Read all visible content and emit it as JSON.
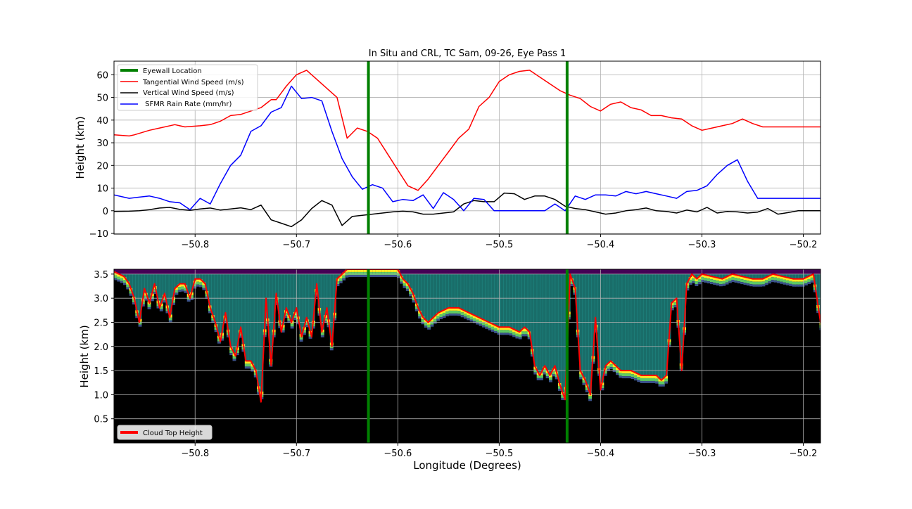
{
  "chart_data": [
    {
      "type": "line",
      "title": "In Situ and CRL, TC Sam, 09-26, Eye Pass 1",
      "xlabel": "",
      "ylabel": "Height (km)",
      "xlim": [
        -50.88,
        -50.183
      ],
      "ylim": [
        -10.3,
        66
      ],
      "x_ticks": [
        -50.8,
        -50.7,
        -50.6,
        -50.5,
        -50.4,
        -50.3,
        -50.2
      ],
      "x_tick_labels": [
        "−50.8",
        "−50.7",
        "−50.6",
        "−50.5",
        "−50.4",
        "−50.3",
        "−50.2"
      ],
      "y_ticks": [
        -10,
        0,
        10,
        20,
        30,
        40,
        50,
        60
      ],
      "y_tick_labels": [
        "−10",
        "0",
        "10",
        "20",
        "30",
        "40",
        "50",
        "60"
      ],
      "grid": true,
      "legend_position": "top-left",
      "eyewall_longitudes": [
        -50.629,
        -50.433
      ],
      "series": [
        {
          "name": "Eyewall Location",
          "color": "#008000",
          "kind": "vline"
        },
        {
          "name": "Tangential Wind Speed (m/s)",
          "color": "#ff0000",
          "x": [
            -50.88,
            -50.865,
            -50.86,
            -50.845,
            -50.835,
            -50.82,
            -50.81,
            -50.795,
            -50.785,
            -50.775,
            -50.765,
            -50.755,
            -50.745,
            -50.735,
            -50.725,
            -50.72,
            -50.71,
            -50.7,
            -50.69,
            -50.68,
            -50.67,
            -50.66,
            -50.65,
            -50.64,
            -50.63,
            -50.62,
            -50.61,
            -50.6,
            -50.59,
            -50.58,
            -50.57,
            -50.56,
            -50.55,
            -50.54,
            -50.53,
            -50.52,
            -50.51,
            -50.5,
            -50.49,
            -50.48,
            -50.47,
            -50.46,
            -50.45,
            -50.44,
            -50.43,
            -50.42,
            -50.41,
            -50.4,
            -50.39,
            -50.38,
            -50.37,
            -50.36,
            -50.35,
            -50.34,
            -50.33,
            -50.32,
            -50.31,
            -50.3,
            -50.29,
            -50.28,
            -50.27,
            -50.26,
            -50.25,
            -50.24,
            -50.23,
            -50.22,
            -50.21,
            -50.2,
            -50.183
          ],
          "y": [
            33.5,
            33,
            33.5,
            35.5,
            36.5,
            38,
            37,
            37.5,
            38,
            39.5,
            42,
            42.5,
            44,
            45.5,
            49,
            49,
            55,
            60,
            62,
            58,
            54,
            50,
            32,
            36.5,
            35,
            32,
            25,
            18,
            11,
            9,
            14,
            20,
            26,
            32,
            36,
            46,
            50,
            57,
            60,
            61.5,
            62,
            59,
            56,
            53,
            51,
            49.5,
            46,
            44,
            47,
            48,
            45.5,
            44.5,
            42,
            42,
            41,
            40.5,
            37.5,
            35.5,
            36.5,
            37.5,
            38.5,
            40.5,
            38.5,
            37,
            37,
            37,
            37,
            37,
            37
          ]
        },
        {
          "name": "Vertical Wind Speed (m/s)",
          "color": "#000000",
          "x": [
            -50.88,
            -50.865,
            -50.855,
            -50.845,
            -50.835,
            -50.825,
            -50.815,
            -50.805,
            -50.795,
            -50.785,
            -50.775,
            -50.765,
            -50.755,
            -50.745,
            -50.735,
            -50.725,
            -50.715,
            -50.705,
            -50.695,
            -50.685,
            -50.675,
            -50.665,
            -50.655,
            -50.645,
            -50.635,
            -50.625,
            -50.615,
            -50.605,
            -50.595,
            -50.585,
            -50.575,
            -50.565,
            -50.555,
            -50.545,
            -50.535,
            -50.525,
            -50.515,
            -50.505,
            -50.495,
            -50.485,
            -50.475,
            -50.465,
            -50.455,
            -50.445,
            -50.435,
            -50.425,
            -50.415,
            -50.405,
            -50.395,
            -50.385,
            -50.375,
            -50.365,
            -50.355,
            -50.345,
            -50.335,
            -50.325,
            -50.315,
            -50.305,
            -50.295,
            -50.285,
            -50.275,
            -50.265,
            -50.255,
            -50.245,
            -50.235,
            -50.225,
            -50.215,
            -50.205,
            -50.195,
            -50.183
          ],
          "y": [
            -0.3,
            -0.2,
            0,
            0.5,
            1.2,
            1.5,
            0.6,
            0.2,
            0.8,
            1.2,
            0.3,
            0.8,
            1.3,
            0.5,
            2.5,
            -4,
            -5.5,
            -7,
            -4,
            1,
            4.5,
            2.5,
            -6.5,
            -2.5,
            -2,
            -1.5,
            -1,
            -0.5,
            -0.2,
            -0.5,
            -1.5,
            -1.5,
            -1,
            -0.5,
            3,
            4.5,
            4,
            4,
            7.8,
            7.5,
            5,
            6.5,
            6.5,
            5,
            2,
            1,
            0.5,
            -0.5,
            -1.5,
            -1,
            0,
            0.5,
            1.2,
            0,
            -0.3,
            -1,
            0.3,
            -0.5,
            1.5,
            -1,
            -0.3,
            -0.5,
            -1,
            -0.6,
            1,
            -1.5,
            -0.8,
            0,
            0,
            0
          ]
        },
        {
          "name": " SFMR Rain Rate (mm/hr)",
          "color": "#0000ff",
          "x": [
            -50.88,
            -50.865,
            -50.855,
            -50.845,
            -50.835,
            -50.825,
            -50.815,
            -50.805,
            -50.795,
            -50.785,
            -50.775,
            -50.765,
            -50.755,
            -50.745,
            -50.735,
            -50.725,
            -50.715,
            -50.705,
            -50.695,
            -50.685,
            -50.675,
            -50.665,
            -50.655,
            -50.645,
            -50.635,
            -50.625,
            -50.615,
            -50.605,
            -50.595,
            -50.585,
            -50.575,
            -50.565,
            -50.555,
            -50.545,
            -50.535,
            -50.525,
            -50.515,
            -50.505,
            -50.495,
            -50.485,
            -50.475,
            -50.465,
            -50.455,
            -50.445,
            -50.435,
            -50.425,
            -50.415,
            -50.405,
            -50.395,
            -50.385,
            -50.375,
            -50.365,
            -50.355,
            -50.345,
            -50.335,
            -50.325,
            -50.315,
            -50.305,
            -50.295,
            -50.285,
            -50.275,
            -50.265,
            -50.255,
            -50.245,
            -50.235,
            -50.225,
            -50.215,
            -50.205,
            -50.195,
            -50.183
          ],
          "y": [
            7,
            5.5,
            6,
            6.5,
            5.5,
            4,
            3.5,
            0.5,
            5.5,
            3,
            12,
            20,
            24.5,
            35,
            37.5,
            43.5,
            45.5,
            55,
            49.5,
            50,
            48.5,
            35,
            23,
            15,
            9.5,
            11.5,
            10,
            4,
            5,
            4.5,
            7,
            1,
            8,
            5,
            0,
            5.5,
            5,
            0,
            0,
            0,
            0,
            0,
            0,
            3,
            0,
            6.5,
            5,
            7,
            7,
            6.5,
            8.5,
            7.5,
            8.5,
            7.5,
            6.5,
            5.5,
            8.5,
            9,
            11,
            16,
            20,
            22.5,
            13,
            5.5,
            5.5,
            5.5,
            5.5,
            5.5,
            5.5,
            5.5
          ]
        }
      ]
    },
    {
      "type": "heatmap",
      "title": "",
      "xlabel": "Longitude (Degrees)",
      "ylabel": "Height (km)",
      "xlim": [
        -50.88,
        -50.183
      ],
      "ylim": [
        0,
        3.6
      ],
      "x_ticks": [
        -50.8,
        -50.7,
        -50.6,
        -50.5,
        -50.4,
        -50.3,
        -50.2
      ],
      "x_tick_labels": [
        "−50.8",
        "−50.7",
        "−50.6",
        "−50.5",
        "−50.4",
        "−50.3",
        "−50.2"
      ],
      "y_ticks": [
        0.5,
        1.0,
        1.5,
        2.0,
        2.5,
        3.0,
        3.5
      ],
      "y_tick_labels": [
        "0.5",
        "1.0",
        "1.5",
        "2.0",
        "2.5",
        "3.0",
        "3.5"
      ],
      "grid": true,
      "legend_position": "bottom-left",
      "background_color": "#000000",
      "colormap": [
        "#440154",
        "#3b528b",
        "#21918c",
        "#5ec962",
        "#fde725"
      ],
      "eyewall_longitudes": [
        -50.629,
        -50.433
      ],
      "eyewall_color": "#008000",
      "series": [
        {
          "name": "Cloud Top Height",
          "color": "#ff0000",
          "x": [
            -50.88,
            -50.87,
            -50.865,
            -50.86,
            -50.855,
            -50.85,
            -50.845,
            -50.84,
            -50.835,
            -50.83,
            -50.825,
            -50.82,
            -50.815,
            -50.81,
            -50.805,
            -50.8,
            -50.795,
            -50.79,
            -50.785,
            -50.78,
            -50.775,
            -50.77,
            -50.765,
            -50.76,
            -50.755,
            -50.75,
            -50.745,
            -50.74,
            -50.735,
            -50.73,
            -50.725,
            -50.72,
            -50.715,
            -50.71,
            -50.705,
            -50.7,
            -50.695,
            -50.69,
            -50.685,
            -50.68,
            -50.675,
            -50.67,
            -50.665,
            -50.66,
            -50.65,
            -50.64,
            -50.63,
            -50.62,
            -50.61,
            -50.6,
            -50.595,
            -50.59,
            -50.585,
            -50.58,
            -50.575,
            -50.57,
            -50.565,
            -50.56,
            -50.55,
            -50.54,
            -50.53,
            -50.52,
            -50.51,
            -50.5,
            -50.49,
            -50.48,
            -50.475,
            -50.47,
            -50.465,
            -50.46,
            -50.455,
            -50.45,
            -50.445,
            -50.44,
            -50.435,
            -50.43,
            -50.425,
            -50.42,
            -50.415,
            -50.41,
            -50.405,
            -50.4,
            -50.395,
            -50.39,
            -50.385,
            -50.38,
            -50.37,
            -50.36,
            -50.35,
            -50.345,
            -50.34,
            -50.335,
            -50.33,
            -50.325,
            -50.32,
            -50.315,
            -50.31,
            -50.305,
            -50.3,
            -50.29,
            -50.28,
            -50.27,
            -50.26,
            -50.25,
            -50.24,
            -50.23,
            -50.22,
            -50.21,
            -50.2,
            -50.19,
            -50.183
          ],
          "y": [
            3.55,
            3.45,
            3.3,
            3.0,
            2.5,
            3.2,
            2.9,
            3.3,
            2.8,
            3.1,
            2.6,
            3.2,
            3.3,
            3.3,
            3.0,
            3.4,
            3.4,
            3.3,
            2.8,
            2.5,
            2.1,
            2.7,
            2.0,
            1.8,
            2.4,
            1.7,
            1.7,
            1.5,
            0.85,
            3.0,
            1.6,
            3.1,
            2.3,
            2.8,
            2.5,
            2.8,
            2.2,
            2.6,
            2.2,
            3.3,
            2.3,
            2.8,
            2.0,
            3.4,
            3.6,
            3.6,
            3.6,
            3.6,
            3.6,
            3.6,
            3.4,
            3.3,
            3.1,
            2.8,
            2.6,
            2.5,
            2.6,
            2.7,
            2.8,
            2.8,
            2.7,
            2.6,
            2.5,
            2.4,
            2.4,
            2.3,
            2.4,
            2.3,
            1.6,
            1.4,
            1.6,
            1.4,
            1.6,
            1.2,
            0.9,
            3.5,
            3.2,
            1.5,
            1.3,
            1.0,
            2.6,
            1.1,
            1.6,
            1.7,
            1.6,
            1.5,
            1.5,
            1.4,
            1.4,
            1.4,
            1.3,
            1.4,
            2.9,
            3.0,
            1.5,
            3.3,
            3.5,
            3.4,
            3.5,
            3.45,
            3.4,
            3.5,
            3.45,
            3.4,
            3.4,
            3.5,
            3.45,
            3.4,
            3.4,
            3.5,
            2.5
          ]
        }
      ]
    }
  ]
}
